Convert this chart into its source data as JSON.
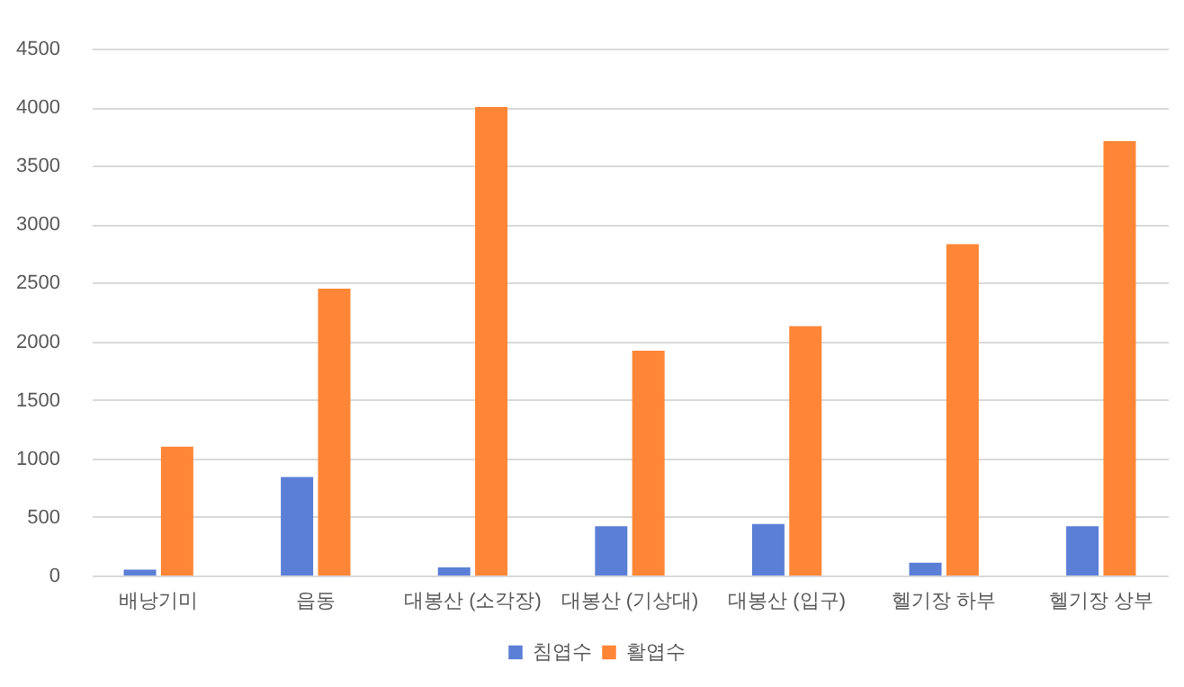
{
  "chart_data": {
    "type": "bar",
    "categories": [
      "배낭기미",
      "읍동",
      "대봉산 (소각장)",
      "대봉산 (기상대)",
      "대봉산 (입구)",
      "헬기장 하부",
      "헬기장 상부"
    ],
    "series": [
      {
        "name": "침엽수",
        "color": "#5b7fd6",
        "values": [
          50,
          840,
          70,
          420,
          440,
          110,
          420
        ]
      },
      {
        "name": "활엽수",
        "color": "#ff8636",
        "values": [
          1100,
          2450,
          4000,
          1920,
          2130,
          2830,
          3710
        ]
      }
    ],
    "ylim": [
      0,
      4500
    ],
    "yticks": [
      0,
      500,
      1000,
      1500,
      2000,
      2500,
      3000,
      3500,
      4000,
      4500
    ],
    "grid": "y",
    "legend": "bottom"
  }
}
